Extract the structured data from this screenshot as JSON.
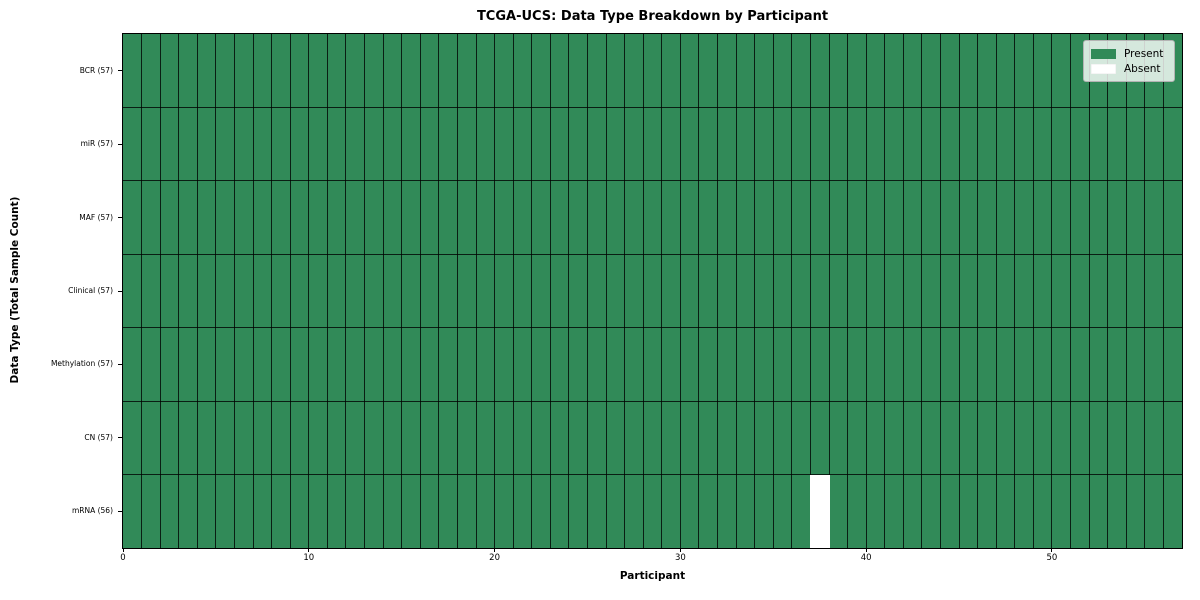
{
  "title": "TCGA-UCS: Data Type Breakdown by Participant",
  "colors": {
    "present": "#318a58",
    "absent": "#ffffff",
    "gridline": "rgba(0,0,0,0.78)",
    "spine": "#000000"
  },
  "chart_data": {
    "type": "heatmap",
    "title": "TCGA-UCS: Data Type Breakdown by Participant",
    "xlabel": "Participant",
    "ylabel": "Data Type (Total Sample Count)",
    "x_axis": {
      "ticks": [
        0,
        10,
        20,
        30,
        40,
        50
      ],
      "range": [
        0,
        57
      ]
    },
    "n_participants": 57,
    "rows": [
      {
        "label": "BCR (57)",
        "data_type": "BCR",
        "present_count": 57,
        "absent_participants": []
      },
      {
        "label": "miR (57)",
        "data_type": "miR",
        "present_count": 57,
        "absent_participants": []
      },
      {
        "label": "MAF (57)",
        "data_type": "MAF",
        "present_count": 57,
        "absent_participants": []
      },
      {
        "label": "Clinical (57)",
        "data_type": "Clinical",
        "present_count": 57,
        "absent_participants": []
      },
      {
        "label": "Methylation (57)",
        "data_type": "Methylation",
        "present_count": 57,
        "absent_participants": []
      },
      {
        "label": "CN (57)",
        "data_type": "CN",
        "present_count": 57,
        "absent_participants": []
      },
      {
        "label": "mRNA (56)",
        "data_type": "mRNA",
        "present_count": 56,
        "absent_participants": [
          37
        ]
      }
    ],
    "legend": [
      {
        "label": "Present",
        "color": "#318a58"
      },
      {
        "label": "Absent",
        "color": "#ffffff"
      }
    ],
    "legend_position": "upper right",
    "grid": true
  }
}
